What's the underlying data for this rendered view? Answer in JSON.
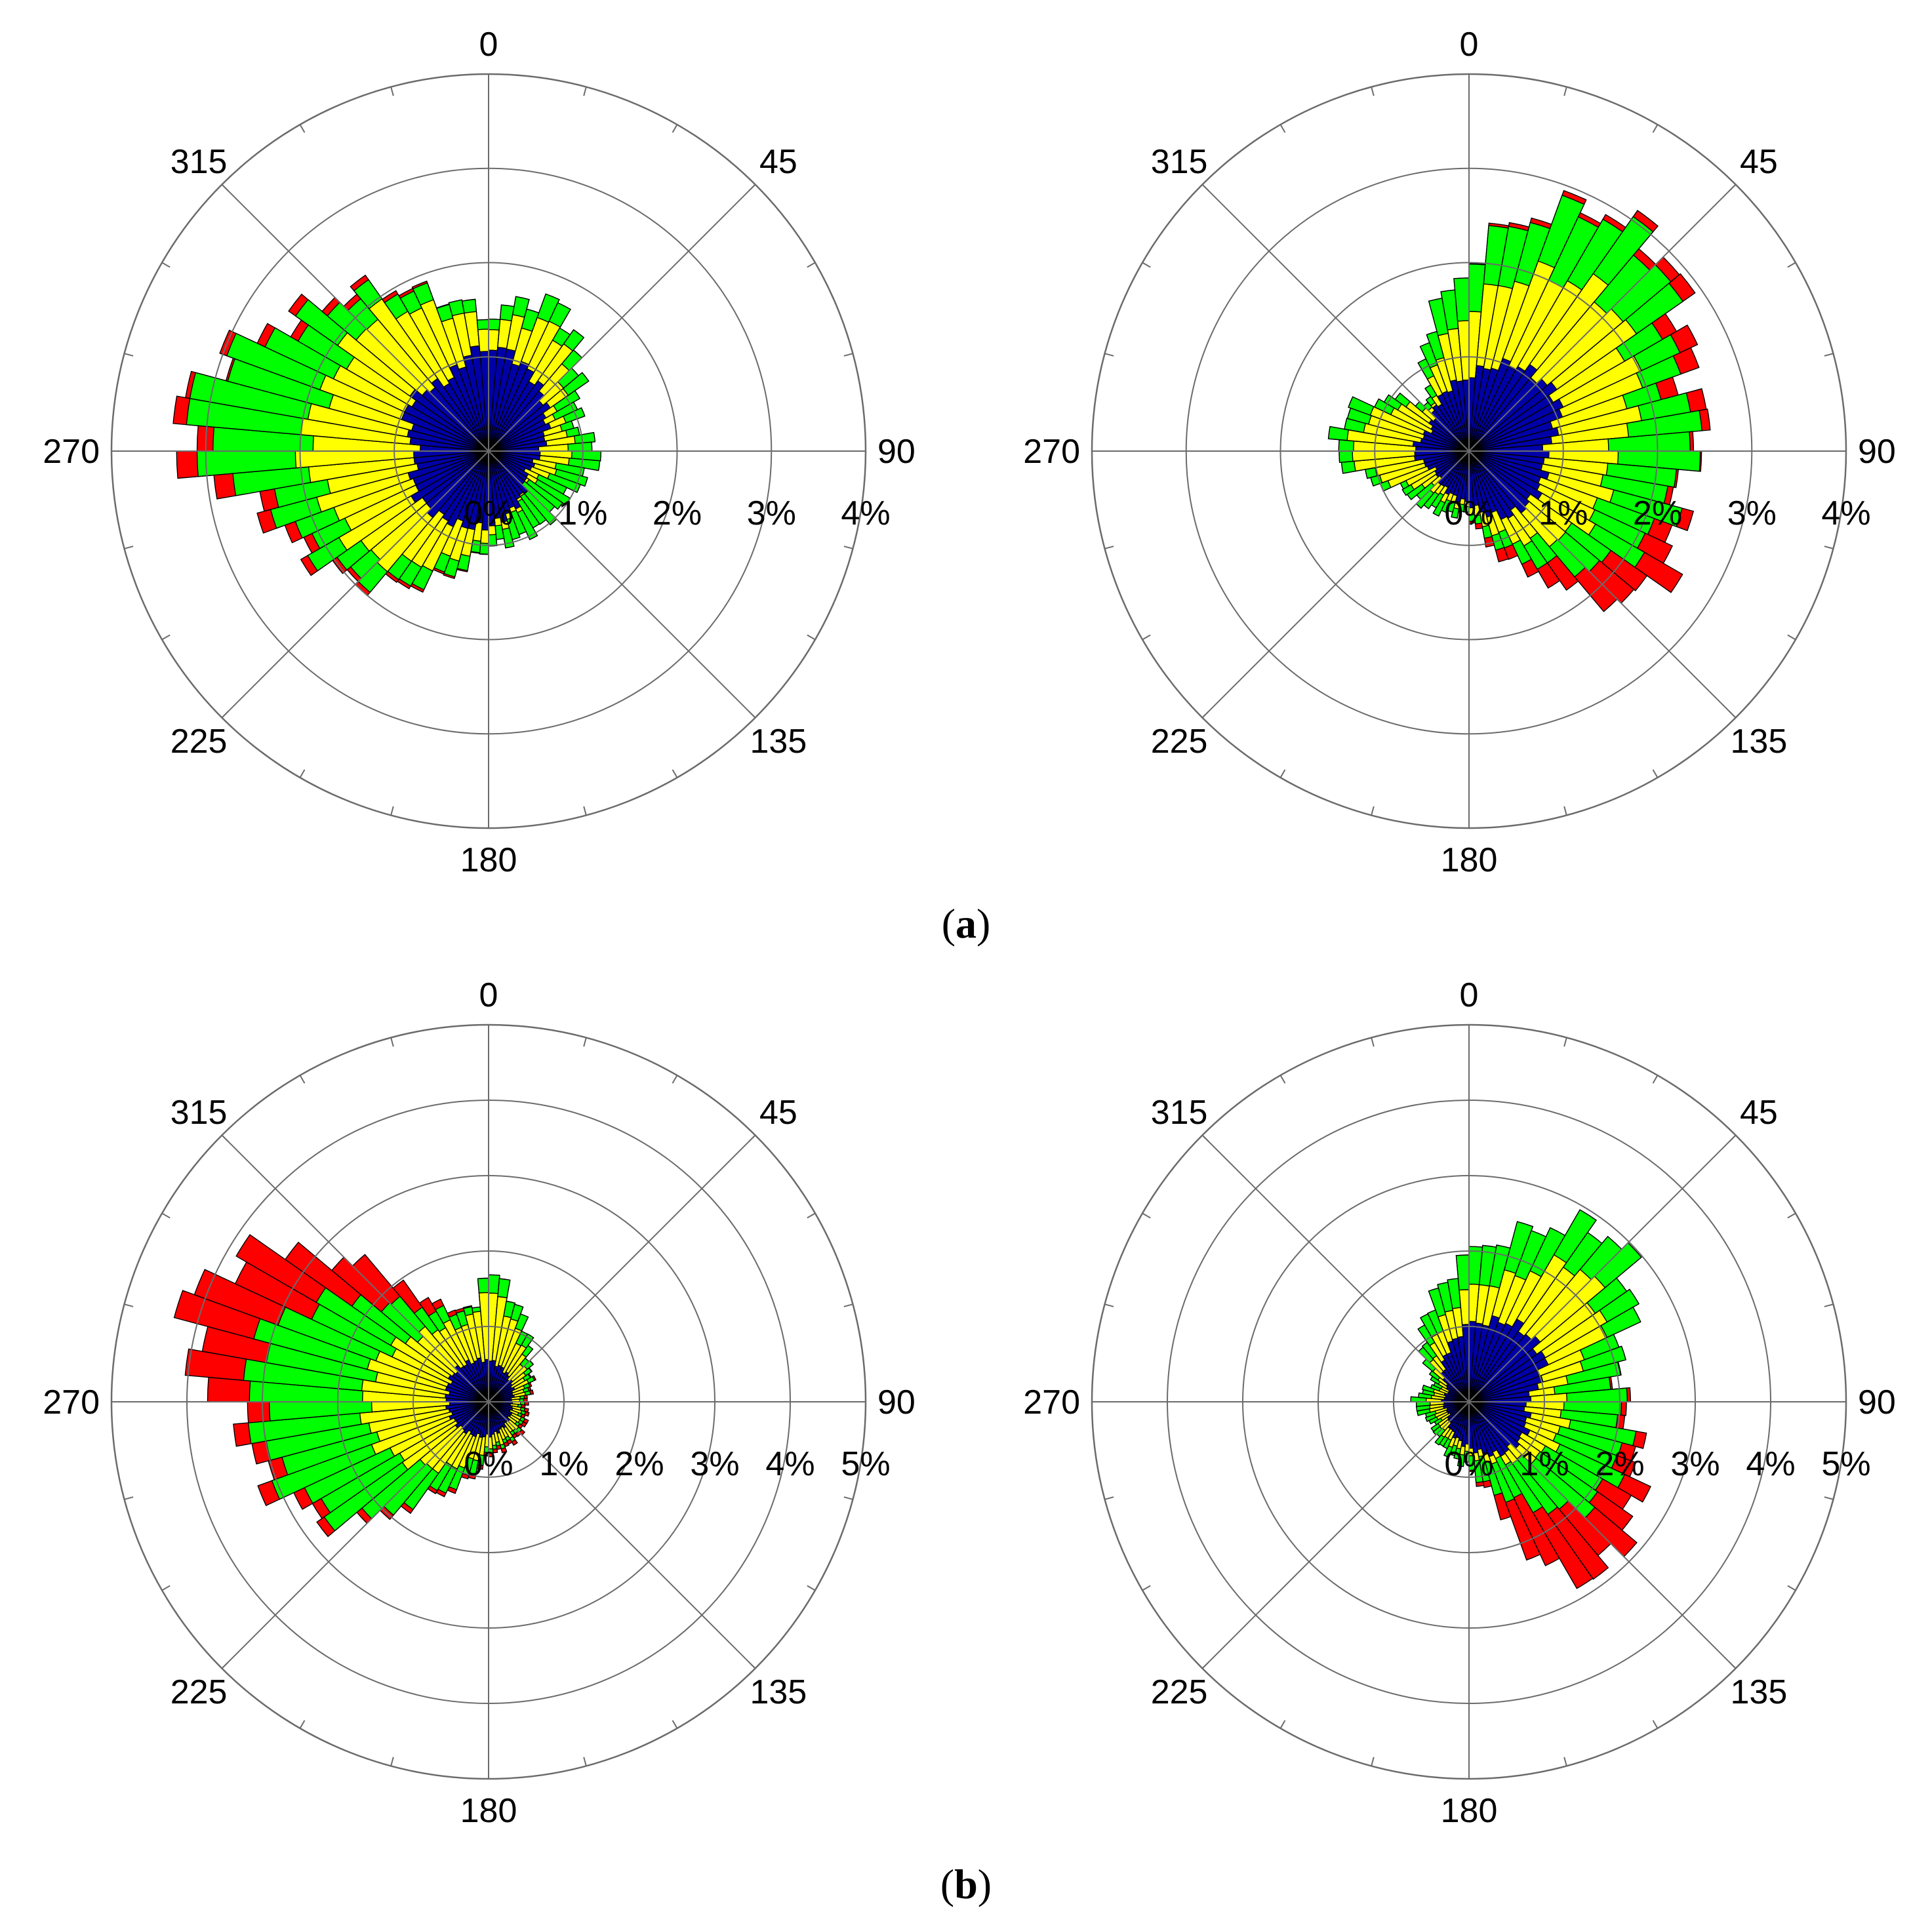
{
  "figure": {
    "captions": [
      {
        "open": "(",
        "letter": "a",
        "close": ")"
      },
      {
        "open": "(",
        "letter": "b",
        "close": ")"
      }
    ],
    "angle_labels": [
      "0",
      "45",
      "90",
      "135",
      "180",
      "225",
      "270",
      "315"
    ]
  },
  "colors": {
    "blue": "#0000a8",
    "yellow": "#ffff00",
    "green": "#00ff00",
    "red": "#ff0000",
    "grid": "#6b6b6b",
    "bar_edge": "#000000"
  },
  "chart_data": [
    {
      "type": "polar-stacked-bar",
      "panel": "a",
      "position": "left",
      "rlim": [
        0,
        4
      ],
      "ring_ticks": [
        "0%",
        "1%",
        "2%",
        "3%",
        "4%"
      ],
      "sector_deg": 5,
      "series": [
        {
          "color": "blue",
          "keys": [
            [
              0,
              1.15
            ],
            [
              60,
              0.7
            ],
            [
              90,
              0.55
            ],
            [
              120,
              0.45
            ],
            [
              180,
              0.8
            ],
            [
              240,
              0.9
            ],
            [
              270,
              0.75
            ],
            [
              300,
              1.0
            ],
            [
              330,
              0.85
            ],
            [
              360,
              1.15
            ]
          ]
        },
        {
          "color": "yellow",
          "keys": [
            [
              0,
              1.35
            ],
            [
              30,
              1.5
            ],
            [
              60,
              0.8
            ],
            [
              90,
              0.9
            ],
            [
              130,
              0.5
            ],
            [
              180,
              0.9
            ],
            [
              230,
              1.7
            ],
            [
              255,
              1.8
            ],
            [
              270,
              2.0
            ],
            [
              295,
              1.8
            ],
            [
              320,
              1.9
            ],
            [
              345,
              1.5
            ],
            [
              360,
              1.35
            ]
          ]
        },
        {
          "color": "green",
          "keys": [
            [
              0,
              1.45
            ],
            [
              25,
              1.75
            ],
            [
              45,
              1.35
            ],
            [
              60,
              1.1
            ],
            [
              75,
              0.95
            ],
            [
              90,
              1.2
            ],
            [
              120,
              0.95
            ],
            [
              180,
              1.0
            ],
            [
              230,
              2.0
            ],
            [
              255,
              2.3
            ],
            [
              270,
              3.1
            ],
            [
              285,
              3.15
            ],
            [
              300,
              2.5
            ],
            [
              325,
              2.05
            ],
            [
              345,
              1.65
            ],
            [
              360,
              1.45
            ]
          ]
        },
        {
          "color": "red",
          "keys": [
            [
              0,
              1.45
            ],
            [
              25,
              1.75
            ],
            [
              45,
              1.35
            ],
            [
              60,
              1.1
            ],
            [
              75,
              0.95
            ],
            [
              90,
              1.2
            ],
            [
              120,
              0.95
            ],
            [
              180,
              1.0
            ],
            [
              230,
              2.05
            ],
            [
              255,
              2.45
            ],
            [
              265,
              3.05
            ],
            [
              270,
              3.3
            ],
            [
              280,
              3.25
            ],
            [
              290,
              3.0
            ],
            [
              300,
              2.6
            ],
            [
              325,
              2.1
            ],
            [
              345,
              1.65
            ],
            [
              360,
              1.45
            ]
          ]
        }
      ]
    },
    {
      "type": "polar-stacked-bar",
      "panel": "a",
      "position": "right",
      "rlim": [
        0,
        4
      ],
      "ring_ticks": [
        "0%",
        "1%",
        "2%",
        "3%",
        "4%"
      ],
      "sector_deg": 5,
      "series": [
        {
          "color": "blue",
          "keys": [
            [
              0,
              0.8
            ],
            [
              30,
              1.05
            ],
            [
              60,
              1.1
            ],
            [
              90,
              0.8
            ],
            [
              120,
              0.85
            ],
            [
              150,
              0.8
            ],
            [
              180,
              0.55
            ],
            [
              240,
              0.4
            ],
            [
              270,
              0.6
            ],
            [
              300,
              0.45
            ],
            [
              360,
              0.8
            ]
          ]
        },
        {
          "color": "yellow",
          "keys": [
            [
              0,
              1.5
            ],
            [
              20,
              2.0
            ],
            [
              40,
              2.2
            ],
            [
              60,
              2.0
            ],
            [
              80,
              1.75
            ],
            [
              90,
              1.5
            ],
            [
              120,
              1.5
            ],
            [
              150,
              1.1
            ],
            [
              180,
              0.6
            ],
            [
              230,
              0.55
            ],
            [
              270,
              1.3
            ],
            [
              290,
              1.1
            ],
            [
              320,
              0.55
            ],
            [
              360,
              1.5
            ]
          ]
        },
        {
          "color": "green",
          "keys": [
            [
              0,
              2.0
            ],
            [
              15,
              2.55
            ],
            [
              30,
              2.9
            ],
            [
              45,
              2.85
            ],
            [
              60,
              2.45
            ],
            [
              75,
              2.2
            ],
            [
              85,
              2.55
            ],
            [
              95,
              2.25
            ],
            [
              110,
              2.2
            ],
            [
              125,
              2.0
            ],
            [
              140,
              1.6
            ],
            [
              160,
              1.1
            ],
            [
              180,
              0.65
            ],
            [
              240,
              0.8
            ],
            [
              270,
              1.45
            ],
            [
              290,
              1.35
            ],
            [
              320,
              0.6
            ],
            [
              360,
              2.0
            ]
          ]
        },
        {
          "color": "red",
          "keys": [
            [
              0,
              2.0
            ],
            [
              15,
              2.6
            ],
            [
              30,
              2.95
            ],
            [
              45,
              2.95
            ],
            [
              60,
              2.65
            ],
            [
              75,
              2.4
            ],
            [
              85,
              2.6
            ],
            [
              95,
              2.25
            ],
            [
              105,
              2.3
            ],
            [
              115,
              2.4
            ],
            [
              125,
              2.5
            ],
            [
              140,
              2.05
            ],
            [
              150,
              1.5
            ],
            [
              165,
              1.1
            ],
            [
              180,
              0.65
            ],
            [
              240,
              0.8
            ],
            [
              270,
              1.45
            ],
            [
              290,
              1.35
            ],
            [
              320,
              0.6
            ],
            [
              360,
              2.0
            ]
          ]
        }
      ]
    },
    {
      "type": "polar-stacked-bar",
      "panel": "b",
      "position": "left",
      "rlim": [
        0,
        5
      ],
      "ring_ticks": [
        "0%",
        "1%",
        "2%",
        "3%",
        "4%",
        "5%"
      ],
      "sector_deg": 5,
      "series": [
        {
          "color": "blue",
          "keys": [
            [
              0,
              0.55
            ],
            [
              45,
              0.4
            ],
            [
              90,
              0.3
            ],
            [
              135,
              0.35
            ],
            [
              180,
              0.45
            ],
            [
              225,
              0.5
            ],
            [
              270,
              0.55
            ],
            [
              315,
              0.6
            ],
            [
              360,
              0.55
            ]
          ]
        },
        {
          "color": "yellow",
          "keys": [
            [
              0,
              1.5
            ],
            [
              25,
              0.95
            ],
            [
              45,
              0.65
            ],
            [
              90,
              0.4
            ],
            [
              135,
              0.5
            ],
            [
              180,
              0.6
            ],
            [
              225,
              1.2
            ],
            [
              250,
              1.6
            ],
            [
              270,
              1.65
            ],
            [
              290,
              1.6
            ],
            [
              315,
              1.25
            ],
            [
              345,
              1.05
            ],
            [
              360,
              1.5
            ]
          ]
        },
        {
          "color": "green",
          "keys": [
            [
              0,
              1.75
            ],
            [
              20,
              1.25
            ],
            [
              45,
              0.75
            ],
            [
              90,
              0.45
            ],
            [
              135,
              0.55
            ],
            [
              180,
              0.65
            ],
            [
              215,
              1.5
            ],
            [
              230,
              2.45
            ],
            [
              250,
              2.95
            ],
            [
              270,
              3.1
            ],
            [
              285,
              3.2
            ],
            [
              300,
              2.65
            ],
            [
              315,
              1.8
            ],
            [
              330,
              1.35
            ],
            [
              350,
              1.2
            ],
            [
              360,
              1.75
            ]
          ]
        },
        {
          "color": "red",
          "keys": [
            [
              0,
              1.75
            ],
            [
              20,
              1.25
            ],
            [
              45,
              0.75
            ],
            [
              90,
              0.5
            ],
            [
              135,
              0.6
            ],
            [
              180,
              0.7
            ],
            [
              215,
              1.55
            ],
            [
              230,
              2.55
            ],
            [
              250,
              3.15
            ],
            [
              265,
              3.25
            ],
            [
              275,
              3.8
            ],
            [
              285,
              4.2
            ],
            [
              295,
              4.05
            ],
            [
              305,
              3.55
            ],
            [
              315,
              2.6
            ],
            [
              330,
              1.45
            ],
            [
              350,
              1.2
            ],
            [
              360,
              1.75
            ]
          ]
        }
      ]
    },
    {
      "type": "polar-stacked-bar",
      "panel": "b",
      "position": "right",
      "rlim": [
        0,
        5
      ],
      "ring_ticks": [
        "0%",
        "1%",
        "2%",
        "3%",
        "4%",
        "5%"
      ],
      "sector_deg": 5,
      "series": [
        {
          "color": "blue",
          "keys": [
            [
              0,
              1.0
            ],
            [
              30,
              1.2
            ],
            [
              60,
              1.15
            ],
            [
              90,
              0.75
            ],
            [
              120,
              0.85
            ],
            [
              150,
              0.8
            ],
            [
              180,
              0.6
            ],
            [
              240,
              0.3
            ],
            [
              270,
              0.35
            ],
            [
              300,
              0.3
            ],
            [
              360,
              1.0
            ]
          ]
        },
        {
          "color": "yellow",
          "keys": [
            [
              0,
              1.45
            ],
            [
              20,
              1.75
            ],
            [
              40,
              2.35
            ],
            [
              60,
              2.05
            ],
            [
              80,
              1.2
            ],
            [
              100,
              1.3
            ],
            [
              120,
              1.25
            ],
            [
              150,
              0.9
            ],
            [
              180,
              0.7
            ],
            [
              240,
              0.45
            ],
            [
              270,
              0.55
            ],
            [
              300,
              0.4
            ],
            [
              360,
              1.45
            ]
          ]
        },
        {
          "color": "green",
          "keys": [
            [
              0,
              1.9
            ],
            [
              20,
              2.4
            ],
            [
              35,
              2.85
            ],
            [
              45,
              2.9
            ],
            [
              60,
              2.5
            ],
            [
              75,
              2.0
            ],
            [
              90,
              2.0
            ],
            [
              105,
              2.15
            ],
            [
              120,
              2.15
            ],
            [
              135,
              2.05
            ],
            [
              150,
              1.55
            ],
            [
              165,
              1.2
            ],
            [
              180,
              0.85
            ],
            [
              240,
              0.55
            ],
            [
              270,
              0.75
            ],
            [
              300,
              0.5
            ],
            [
              360,
              1.9
            ]
          ]
        },
        {
          "color": "red",
          "keys": [
            [
              0,
              1.9
            ],
            [
              20,
              2.4
            ],
            [
              35,
              2.85
            ],
            [
              45,
              2.9
            ],
            [
              60,
              2.5
            ],
            [
              75,
              2.0
            ],
            [
              90,
              2.05
            ],
            [
              105,
              2.3
            ],
            [
              120,
              2.55
            ],
            [
              135,
              2.8
            ],
            [
              145,
              2.85
            ],
            [
              155,
              2.45
            ],
            [
              165,
              1.3
            ],
            [
              180,
              0.85
            ],
            [
              240,
              0.55
            ],
            [
              270,
              0.75
            ],
            [
              300,
              0.5
            ],
            [
              360,
              1.9
            ]
          ]
        }
      ]
    }
  ]
}
